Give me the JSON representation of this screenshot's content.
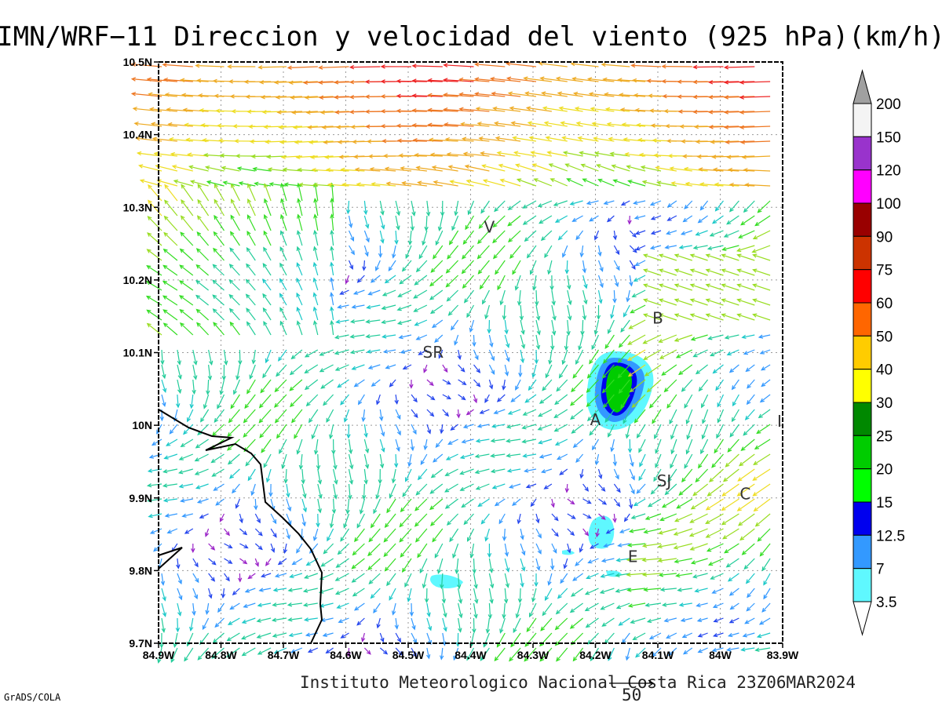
{
  "title": "IMN/WRF−11 Direccion y velocidad del viento (925 hPa)(km/h)",
  "x_ticks": [
    "84.9W",
    "84.8W",
    "84.7W",
    "84.6W",
    "84.5W",
    "84.4W",
    "84.3W",
    "84.2W",
    "84.1W",
    "84W",
    "83.9W"
  ],
  "y_ticks": [
    "10.5N",
    "10.4N",
    "10.3N",
    "10.2N",
    "10.1N",
    "10N",
    "9.9N",
    "9.8N",
    "9.7N"
  ],
  "colorbar": {
    "levels": [
      "3.5",
      "7",
      "12.5",
      "15",
      "20",
      "25",
      "30",
      "40",
      "50",
      "60",
      "75",
      "90",
      "100",
      "120",
      "150",
      "200"
    ],
    "colors": [
      "#5ff8ff",
      "#3399ff",
      "#0000ee",
      "#00ff00",
      "#00cc00",
      "#008800",
      "#ffff00",
      "#ffcc00",
      "#ff6600",
      "#ff0000",
      "#cc3300",
      "#990000",
      "#ff00ff",
      "#9933cc",
      "#f4f4f4",
      "#a0a0a0"
    ]
  },
  "places": [
    {
      "name": "V",
      "lon": -84.37,
      "lat": 10.265
    },
    {
      "name": "SR",
      "lon": -84.46,
      "lat": 10.093
    },
    {
      "name": "B",
      "lon": -84.1,
      "lat": 10.14
    },
    {
      "name": "A",
      "lon": -84.2,
      "lat": 10.0
    },
    {
      "name": "SJ",
      "lon": -84.09,
      "lat": 9.916
    },
    {
      "name": "C",
      "lon": -83.96,
      "lat": 9.898
    },
    {
      "name": "E",
      "lon": -84.14,
      "lat": 9.812
    },
    {
      "name": "I",
      "lon": -83.905,
      "lat": 9.998
    }
  ],
  "footer": "Instituto Meteorologico Nacional Costa Rica 23Z06MAR2024",
  "ref_vector": "50",
  "credit": "GrADS/COLA"
}
